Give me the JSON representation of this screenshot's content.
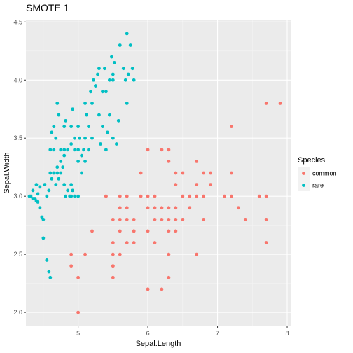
{
  "chart_data": {
    "type": "scatter",
    "title": "SMOTE 1",
    "xlabel": "Sepal.Length",
    "ylabel": "Sepal.Width",
    "xlim": [
      4.25,
      8.05
    ],
    "ylim": [
      1.88,
      4.52
    ],
    "x_ticks": [
      5,
      6,
      7,
      8
    ],
    "y_ticks": [
      2.0,
      2.5,
      3.0,
      3.5,
      4.0,
      4.5
    ],
    "y_tick_labels": [
      "2.0",
      "2.5",
      "3.0",
      "3.5",
      "4.0",
      "4.5"
    ],
    "grid": true,
    "background": "#ebebeb",
    "legend": {
      "title": "Species",
      "position": "right"
    },
    "series": [
      {
        "name": "common",
        "color": "#f8766d",
        "points": [
          [
            4.9,
            2.5
          ],
          [
            4.9,
            2.4
          ],
          [
            5.0,
            2.0
          ],
          [
            5.0,
            2.3
          ],
          [
            5.1,
            2.5
          ],
          [
            5.2,
            2.7
          ],
          [
            5.4,
            3.0
          ],
          [
            5.4,
            3.0
          ],
          [
            5.5,
            2.3
          ],
          [
            5.5,
            2.4
          ],
          [
            5.5,
            2.4
          ],
          [
            5.5,
            2.5
          ],
          [
            5.5,
            2.6
          ],
          [
            5.5,
            2.8
          ],
          [
            5.6,
            2.5
          ],
          [
            5.6,
            2.7
          ],
          [
            5.6,
            2.8
          ],
          [
            5.6,
            2.9
          ],
          [
            5.6,
            3.0
          ],
          [
            5.7,
            2.6
          ],
          [
            5.7,
            2.8
          ],
          [
            5.7,
            2.9
          ],
          [
            5.7,
            3.0
          ],
          [
            5.8,
            2.6
          ],
          [
            5.8,
            2.7
          ],
          [
            5.8,
            2.7
          ],
          [
            5.8,
            2.8
          ],
          [
            5.9,
            3.0
          ],
          [
            5.9,
            3.2
          ],
          [
            6.0,
            2.2
          ],
          [
            6.0,
            2.2
          ],
          [
            6.0,
            2.7
          ],
          [
            6.0,
            2.9
          ],
          [
            6.0,
            3.0
          ],
          [
            6.0,
            3.4
          ],
          [
            6.1,
            2.6
          ],
          [
            6.1,
            2.8
          ],
          [
            6.1,
            2.9
          ],
          [
            6.1,
            3.0
          ],
          [
            6.2,
            2.2
          ],
          [
            6.2,
            2.8
          ],
          [
            6.2,
            2.9
          ],
          [
            6.2,
            3.4
          ],
          [
            6.3,
            2.3
          ],
          [
            6.3,
            2.5
          ],
          [
            6.3,
            2.7
          ],
          [
            6.3,
            2.8
          ],
          [
            6.3,
            2.9
          ],
          [
            6.3,
            3.3
          ],
          [
            6.3,
            3.4
          ],
          [
            6.4,
            2.7
          ],
          [
            6.4,
            2.8
          ],
          [
            6.4,
            2.9
          ],
          [
            6.4,
            3.1
          ],
          [
            6.4,
            3.2
          ],
          [
            6.5,
            2.8
          ],
          [
            6.5,
            3.0
          ],
          [
            6.5,
            3.2
          ],
          [
            6.6,
            2.9
          ],
          [
            6.6,
            3.0
          ],
          [
            6.7,
            2.5
          ],
          [
            6.7,
            3.0
          ],
          [
            6.7,
            3.1
          ],
          [
            6.7,
            3.3
          ],
          [
            6.8,
            2.8
          ],
          [
            6.8,
            3.0
          ],
          [
            6.8,
            3.2
          ],
          [
            6.9,
            3.1
          ],
          [
            6.9,
            3.2
          ],
          [
            7.1,
            3.0
          ],
          [
            7.2,
            3.0
          ],
          [
            7.2,
            3.2
          ],
          [
            7.2,
            3.6
          ],
          [
            7.3,
            2.9
          ],
          [
            7.4,
            2.8
          ],
          [
            7.6,
            3.0
          ],
          [
            7.7,
            2.6
          ],
          [
            7.7,
            2.8
          ],
          [
            7.7,
            3.0
          ],
          [
            7.7,
            3.8
          ],
          [
            7.9,
            3.8
          ]
        ]
      },
      {
        "name": "rare",
        "color": "#00bfc4",
        "points": [
          [
            4.32,
            3.0
          ],
          [
            4.35,
            3.05
          ],
          [
            4.38,
            2.98
          ],
          [
            4.4,
            3.1
          ],
          [
            4.42,
            2.95
          ],
          [
            4.45,
            3.08
          ],
          [
            4.45,
            2.9
          ],
          [
            4.48,
            2.82
          ],
          [
            4.5,
            2.8
          ],
          [
            4.5,
            2.64
          ],
          [
            4.52,
            3.1
          ],
          [
            4.55,
            3.0
          ],
          [
            4.55,
            2.45
          ],
          [
            4.58,
            2.35
          ],
          [
            4.6,
            2.3
          ],
          [
            4.58,
            3.05
          ],
          [
            4.62,
            3.15
          ],
          [
            4.6,
            3.2
          ],
          [
            4.65,
            3.2
          ],
          [
            4.65,
            3.4
          ],
          [
            4.68,
            3.1
          ],
          [
            4.7,
            3.2
          ],
          [
            4.7,
            3.25
          ],
          [
            4.72,
            3.15
          ],
          [
            4.75,
            3.2
          ],
          [
            4.78,
            3.25
          ],
          [
            4.8,
            3.1
          ],
          [
            4.8,
            3.4
          ],
          [
            4.82,
            3.0
          ],
          [
            4.85,
            3.05
          ],
          [
            4.88,
            3.0
          ],
          [
            4.9,
            3.1
          ],
          [
            4.9,
            3.0
          ],
          [
            4.92,
            3.05
          ],
          [
            4.95,
            3.0
          ],
          [
            5.0,
            3.0
          ],
          [
            4.6,
            3.4
          ],
          [
            4.62,
            3.55
          ],
          [
            4.65,
            3.6
          ],
          [
            4.68,
            3.5
          ],
          [
            4.7,
            3.8
          ],
          [
            4.72,
            3.7
          ],
          [
            4.75,
            3.4
          ],
          [
            4.8,
            3.6
          ],
          [
            4.82,
            3.65
          ],
          [
            4.85,
            3.4
          ],
          [
            4.9,
            3.45
          ],
          [
            4.9,
            3.6
          ],
          [
            4.92,
            3.75
          ],
          [
            4.95,
            3.4
          ],
          [
            4.95,
            3.5
          ],
          [
            5.0,
            3.3
          ],
          [
            5.0,
            3.4
          ],
          [
            5.0,
            3.6
          ],
          [
            5.02,
            3.5
          ],
          [
            5.05,
            3.2
          ],
          [
            5.05,
            3.35
          ],
          [
            5.08,
            3.4
          ],
          [
            5.1,
            3.5
          ],
          [
            5.1,
            3.8
          ],
          [
            5.1,
            3.3
          ],
          [
            5.12,
            3.7
          ],
          [
            5.15,
            3.4
          ],
          [
            5.15,
            3.6
          ],
          [
            5.18,
            3.9
          ],
          [
            5.2,
            3.5
          ],
          [
            5.2,
            3.8
          ],
          [
            5.22,
            4.0
          ],
          [
            5.25,
            3.95
          ],
          [
            5.28,
            4.05
          ],
          [
            5.3,
            3.7
          ],
          [
            5.3,
            4.1
          ],
          [
            5.32,
            3.45
          ],
          [
            5.35,
            3.6
          ],
          [
            5.35,
            3.9
          ],
          [
            5.38,
            4.1
          ],
          [
            5.4,
            3.9
          ],
          [
            5.4,
            3.4
          ],
          [
            5.42,
            3.55
          ],
          [
            5.45,
            4.0
          ],
          [
            5.45,
            3.7
          ],
          [
            5.48,
            4.2
          ],
          [
            5.5,
            3.5
          ],
          [
            5.5,
            4.0
          ],
          [
            5.5,
            4.05
          ],
          [
            5.52,
            4.15
          ],
          [
            5.55,
            3.45
          ],
          [
            5.58,
            3.65
          ],
          [
            5.6,
            4.3
          ],
          [
            5.65,
            4.1
          ],
          [
            5.68,
            4.0
          ],
          [
            5.7,
            3.8
          ],
          [
            5.7,
            4.4
          ],
          [
            5.72,
            4.05
          ],
          [
            5.75,
            4.3
          ],
          [
            5.78,
            4.1
          ],
          [
            5.8,
            4.0
          ],
          [
            4.3,
            3.0
          ],
          [
            4.35,
            2.98
          ],
          [
            4.4,
            2.96
          ],
          [
            4.42,
            3.02
          ],
          [
            4.75,
            3.3
          ],
          [
            4.8,
            3.35
          ]
        ]
      }
    ]
  }
}
